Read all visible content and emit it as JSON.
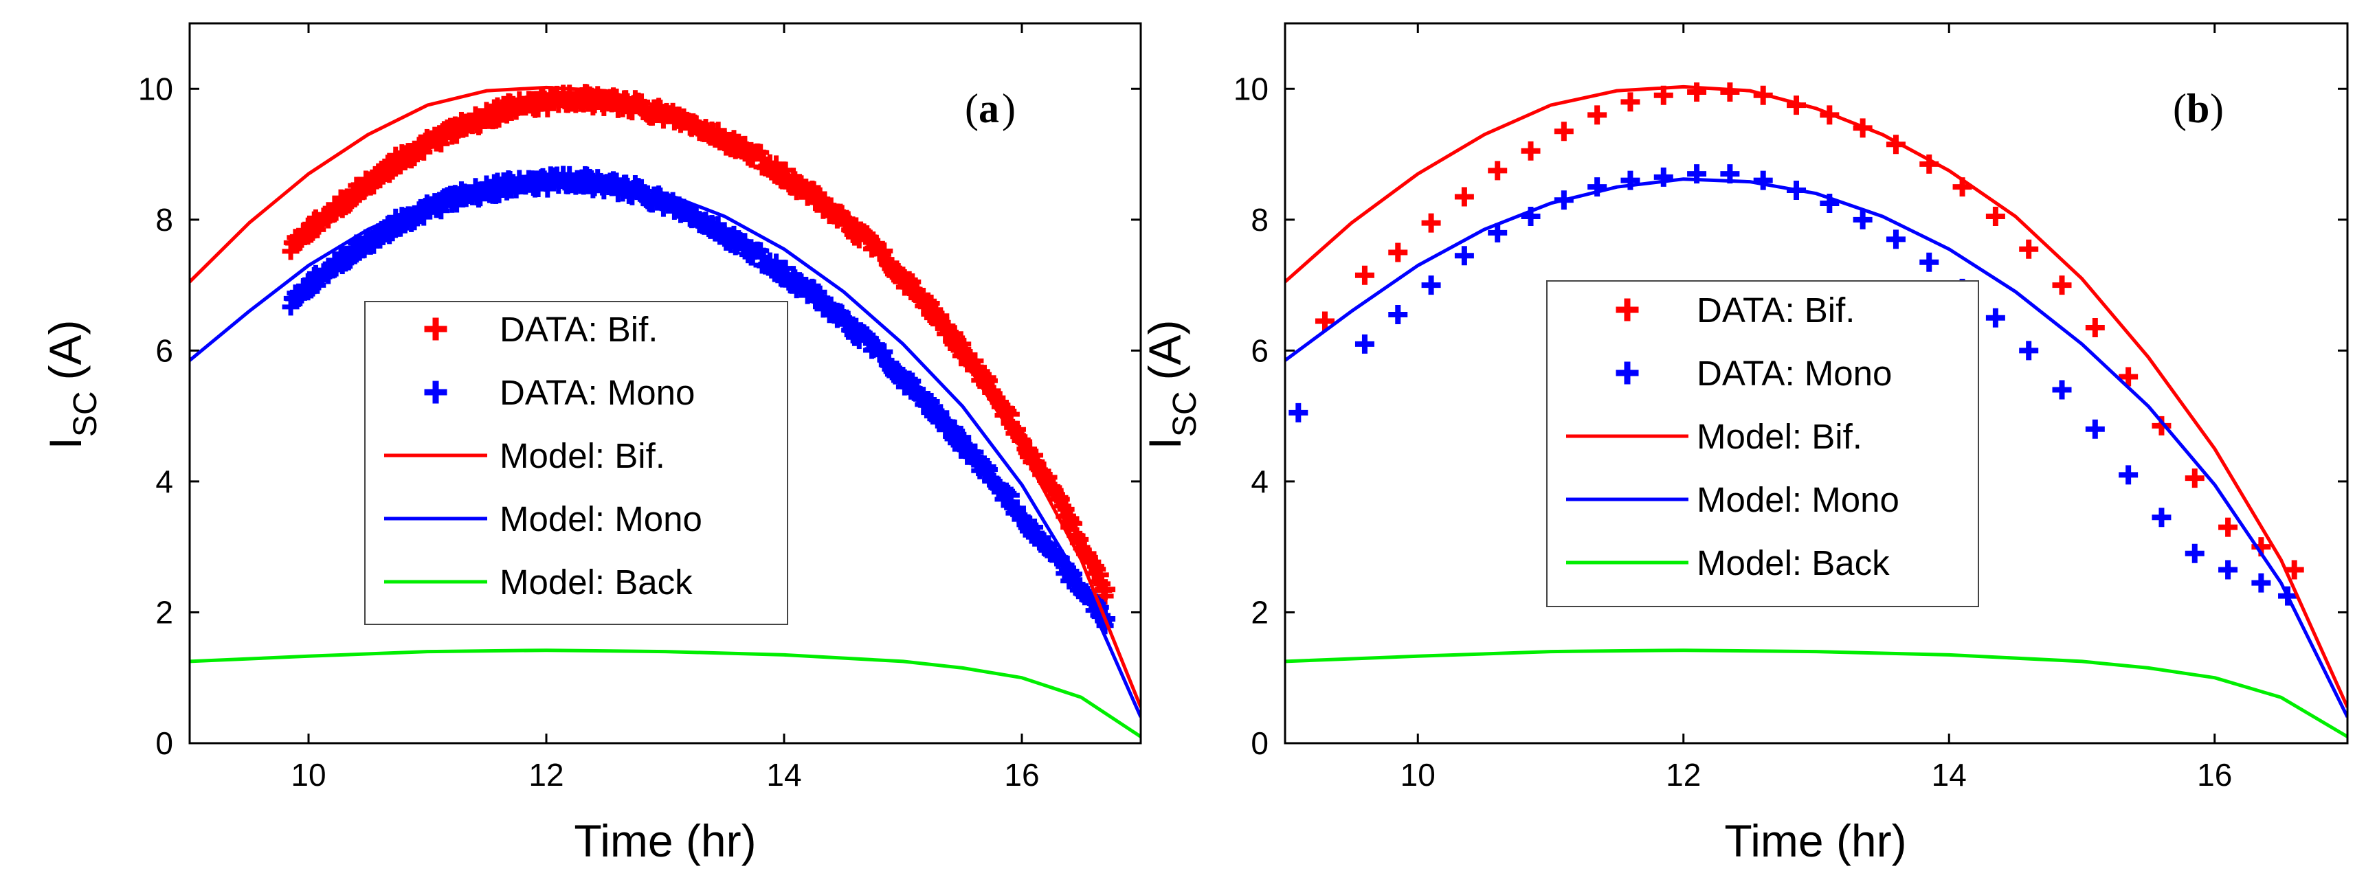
{
  "chart_data": [
    {
      "type": "line",
      "panel_label": "a",
      "xlabel": "Time (hr)",
      "ylabel_main": "I",
      "ylabel_sub": "SC",
      "ylabel_unit": "(A)",
      "xlim": [
        9,
        17
      ],
      "ylim": [
        0,
        11
      ],
      "xticks": [
        10,
        12,
        14,
        16
      ],
      "yticks": [
        0,
        2,
        4,
        6,
        8,
        10
      ],
      "legend": {
        "position": "center",
        "entries": [
          {
            "label": "DATA: Bif.",
            "color": "#ff0000",
            "style": "marker"
          },
          {
            "label": "DATA: Mono",
            "color": "#0000ff",
            "style": "marker"
          },
          {
            "label": "Model: Bif.",
            "color": "#ff0000",
            "style": "line"
          },
          {
            "label": "Model: Mono",
            "color": "#0000ff",
            "style": "line"
          },
          {
            "label": "Model: Back",
            "color": "#00ee00",
            "style": "line"
          }
        ]
      },
      "series": [
        {
          "name": "Model: Bif.",
          "kind": "line",
          "color": "#ff0000",
          "x": [
            9,
            9.5,
            10,
            10.5,
            11,
            11.5,
            12,
            12.5,
            13,
            13.5,
            14,
            14.5,
            15,
            15.5,
            16,
            16.5,
            17
          ],
          "y": [
            7.05,
            7.95,
            8.7,
            9.3,
            9.75,
            9.97,
            10.02,
            9.97,
            9.7,
            9.3,
            8.75,
            8.05,
            7.1,
            5.9,
            4.5,
            2.8,
            0.55
          ]
        },
        {
          "name": "Model: Mono",
          "kind": "line",
          "color": "#0000ff",
          "x": [
            9,
            9.5,
            10,
            10.5,
            11,
            11.5,
            12,
            12.5,
            13,
            13.5,
            14,
            14.5,
            15,
            15.5,
            16,
            16.5,
            17
          ],
          "y": [
            5.85,
            6.6,
            7.3,
            7.85,
            8.25,
            8.5,
            8.62,
            8.58,
            8.4,
            8.05,
            7.55,
            6.9,
            6.1,
            5.15,
            3.95,
            2.45,
            0.4
          ]
        },
        {
          "name": "Model: Back",
          "kind": "line",
          "color": "#00ee00",
          "x": [
            9,
            10,
            11,
            12,
            13,
            14,
            15,
            15.5,
            16,
            16.5,
            17
          ],
          "y": [
            1.25,
            1.33,
            1.4,
            1.42,
            1.4,
            1.35,
            1.25,
            1.15,
            1.0,
            0.7,
            0.1
          ]
        },
        {
          "name": "DATA: Bif.",
          "kind": "band",
          "color": "#ff0000",
          "x": [
            9.85,
            10.25,
            10.75,
            11.25,
            11.75,
            12.25,
            12.75,
            13.25,
            13.75,
            14.25,
            14.75,
            15.25,
            15.75,
            16.25,
            16.7
          ],
          "y": [
            7.6,
            8.2,
            8.9,
            9.4,
            9.75,
            9.85,
            9.75,
            9.45,
            9.0,
            8.35,
            7.6,
            6.6,
            5.4,
            3.9,
            2.35
          ]
        },
        {
          "name": "DATA: Mono",
          "kind": "band",
          "color": "#0000ff",
          "x": [
            9.85,
            10.25,
            10.75,
            11.25,
            11.75,
            12.25,
            12.75,
            13.25,
            13.75,
            14.25,
            14.75,
            15.25,
            15.75,
            16.25,
            16.7
          ],
          "y": [
            6.75,
            7.35,
            7.95,
            8.35,
            8.55,
            8.6,
            8.45,
            8.05,
            7.5,
            6.85,
            6.05,
            5.1,
            4.05,
            2.9,
            1.9
          ]
        }
      ]
    },
    {
      "type": "line",
      "panel_label": "b",
      "xlabel": "Time (hr)",
      "ylabel_main": "I",
      "ylabel_sub": "SC",
      "ylabel_unit": "(A)",
      "xlim": [
        9,
        17
      ],
      "ylim": [
        0,
        11
      ],
      "xticks": [
        10,
        12,
        14,
        16
      ],
      "yticks": [
        0,
        2,
        4,
        6,
        8,
        10
      ],
      "legend": {
        "position": "center",
        "entries": [
          {
            "label": "DATA: Bif.",
            "color": "#ff0000",
            "style": "marker"
          },
          {
            "label": "DATA: Mono",
            "color": "#0000ff",
            "style": "marker"
          },
          {
            "label": "Model: Bif.",
            "color": "#ff0000",
            "style": "line"
          },
          {
            "label": "Model: Mono",
            "color": "#0000ff",
            "style": "line"
          },
          {
            "label": "Model: Back",
            "color": "#00ee00",
            "style": "line"
          }
        ]
      },
      "series": [
        {
          "name": "Model: Bif.",
          "kind": "line",
          "color": "#ff0000",
          "x": [
            9,
            9.5,
            10,
            10.5,
            11,
            11.5,
            12,
            12.5,
            13,
            13.5,
            14,
            14.5,
            15,
            15.5,
            16,
            16.5,
            17
          ],
          "y": [
            7.05,
            7.95,
            8.7,
            9.3,
            9.75,
            9.97,
            10.03,
            9.97,
            9.7,
            9.3,
            8.75,
            8.05,
            7.1,
            5.9,
            4.5,
            2.8,
            0.55
          ]
        },
        {
          "name": "Model: Mono",
          "kind": "line",
          "color": "#0000ff",
          "x": [
            9,
            9.5,
            10,
            10.5,
            11,
            11.5,
            12,
            12.5,
            13,
            13.5,
            14,
            14.5,
            15,
            15.5,
            16,
            16.5,
            17
          ],
          "y": [
            5.85,
            6.6,
            7.3,
            7.85,
            8.25,
            8.5,
            8.62,
            8.58,
            8.4,
            8.05,
            7.55,
            6.9,
            6.1,
            5.15,
            3.95,
            2.45,
            0.4
          ]
        },
        {
          "name": "Model: Back",
          "kind": "line",
          "color": "#00ee00",
          "x": [
            9,
            10,
            11,
            12,
            13,
            14,
            15,
            15.5,
            16,
            16.5,
            17
          ],
          "y": [
            1.25,
            1.33,
            1.4,
            1.42,
            1.4,
            1.35,
            1.25,
            1.15,
            1.0,
            0.7,
            0.1
          ]
        },
        {
          "name": "DATA: Bif.",
          "kind": "markers",
          "color": "#ff0000",
          "x": [
            9.3,
            9.6,
            9.85,
            10.1,
            10.35,
            10.6,
            10.85,
            11.1,
            11.35,
            11.6,
            11.85,
            12.1,
            12.35,
            12.6,
            12.85,
            13.1,
            13.35,
            13.6,
            13.85,
            14.1,
            14.35,
            14.6,
            14.85,
            15.1,
            15.35,
            15.6,
            15.85,
            16.1,
            16.35,
            16.6
          ],
          "y": [
            6.45,
            7.15,
            7.5,
            7.95,
            8.35,
            8.75,
            9.05,
            9.35,
            9.6,
            9.8,
            9.9,
            9.95,
            9.95,
            9.9,
            9.75,
            9.6,
            9.4,
            9.15,
            8.85,
            8.5,
            8.05,
            7.55,
            7.0,
            6.35,
            5.6,
            4.85,
            4.05,
            3.3,
            3.0,
            2.65
          ]
        },
        {
          "name": "DATA: Mono",
          "kind": "markers",
          "color": "#0000ff",
          "x": [
            9.1,
            9.6,
            9.85,
            10.1,
            10.35,
            10.6,
            10.85,
            11.1,
            11.35,
            11.6,
            11.85,
            12.1,
            12.35,
            12.6,
            12.85,
            13.1,
            13.35,
            13.6,
            13.85,
            14.1,
            14.35,
            14.6,
            14.85,
            15.1,
            15.35,
            15.6,
            15.85,
            16.1,
            16.35,
            16.55
          ],
          "y": [
            5.05,
            6.1,
            6.55,
            7.0,
            7.45,
            7.8,
            8.05,
            8.3,
            8.5,
            8.6,
            8.65,
            8.7,
            8.7,
            8.6,
            8.45,
            8.25,
            8.0,
            7.7,
            7.35,
            6.95,
            6.5,
            6.0,
            5.4,
            4.8,
            4.1,
            3.45,
            2.9,
            2.65,
            2.45,
            2.25
          ]
        }
      ]
    }
  ]
}
